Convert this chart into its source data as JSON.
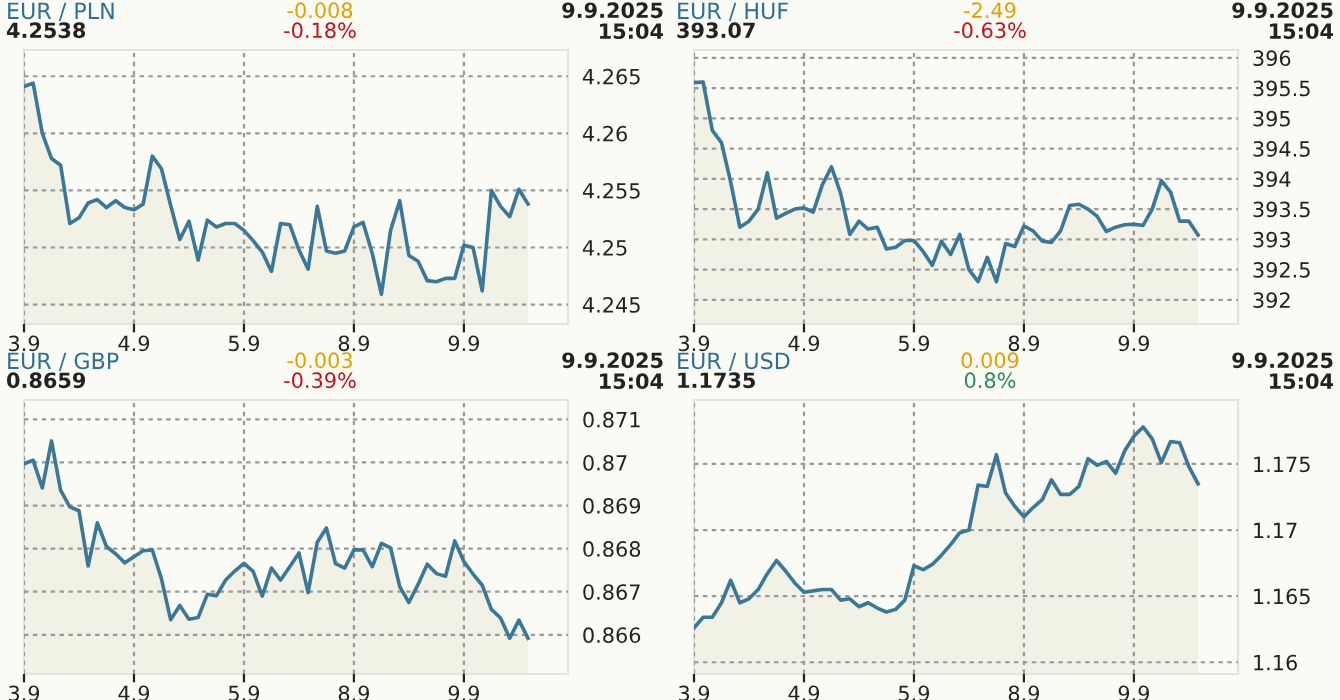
{
  "chart_data": [
    {
      "type": "area",
      "title": "EUR / PLN",
      "subtitle": "4.2538",
      "annotations": [
        "-0.008",
        "-0.18%",
        "9.9.2025\n15:04"
      ],
      "grid": true,
      "line_style": "solid",
      "color": "#3b7898",
      "categories": [
        "3.9",
        null,
        null,
        null,
        null,
        null,
        null,
        null,
        null,
        null,
        null,
        null,
        "4.9",
        null,
        null,
        null,
        null,
        null,
        null,
        null,
        null,
        null,
        null,
        null,
        "5.9",
        null,
        null,
        null,
        null,
        null,
        null,
        null,
        null,
        null,
        null,
        null,
        "8.9",
        null,
        null,
        null,
        null,
        null,
        null,
        null,
        null,
        null,
        null,
        null,
        "9.9",
        null,
        null,
        null,
        null,
        null,
        null,
        null
      ],
      "values": [
        4.2641,
        4.2644,
        4.26,
        4.2578,
        4.2572,
        4.2521,
        4.2526,
        4.2539,
        4.2542,
        4.2535,
        4.2541,
        4.2535,
        4.2533,
        4.2538,
        4.258,
        4.2569,
        4.2537,
        4.2507,
        4.2523,
        4.2489,
        4.2524,
        4.2518,
        4.2521,
        4.2521,
        4.2515,
        4.2506,
        4.2496,
        4.2479,
        4.2521,
        4.252,
        4.2498,
        4.2481,
        4.2536,
        4.2497,
        4.2495,
        4.2497,
        4.2518,
        4.2522,
        4.2495,
        4.2459,
        4.2515,
        4.2541,
        4.2493,
        4.2488,
        4.2471,
        4.247,
        4.2473,
        4.2473,
        4.2502,
        4.25,
        4.2462,
        4.255,
        4.2536,
        4.2527,
        4.2551,
        4.2538
      ],
      "ylim": [
        4.2433,
        4.2673
      ],
      "yticks": [
        4.245,
        4.25,
        4.255,
        4.26,
        4.265
      ]
    },
    {
      "type": "area",
      "title": "EUR / HUF",
      "subtitle": "393.07",
      "annotations": [
        "-2.49",
        "-0.63%",
        "9.9.2025\n15:04"
      ],
      "grid": true,
      "line_style": "solid",
      "color": "#3b7898",
      "categories": [
        "3.9",
        null,
        null,
        null,
        null,
        null,
        null,
        null,
        null,
        null,
        null,
        null,
        "4.9",
        null,
        null,
        null,
        null,
        null,
        null,
        null,
        null,
        null,
        null,
        null,
        "5.9",
        null,
        null,
        null,
        null,
        null,
        null,
        null,
        null,
        null,
        null,
        null,
        "8.9",
        null,
        null,
        null,
        null,
        null,
        null,
        null,
        null,
        null,
        null,
        null,
        "9.9",
        null,
        null,
        null,
        null,
        null,
        null,
        null
      ],
      "values": [
        395.59,
        395.6,
        394.8,
        394.6,
        393.95,
        393.2,
        393.3,
        393.5,
        394.1,
        393.35,
        393.43,
        393.5,
        393.52,
        393.45,
        393.9,
        394.2,
        393.76,
        393.08,
        393.3,
        393.17,
        393.2,
        392.84,
        392.87,
        392.98,
        392.98,
        392.8,
        392.57,
        392.97,
        392.75,
        393.08,
        392.5,
        392.3,
        392.7,
        392.3,
        392.93,
        392.88,
        393.22,
        393.14,
        392.97,
        392.95,
        393.14,
        393.56,
        393.58,
        393.5,
        393.38,
        393.13,
        393.2,
        393.24,
        393.25,
        393.23,
        393.5,
        393.97,
        393.78,
        393.3,
        393.3,
        393.07
      ],
      "ylim": [
        391.6,
        396.13
      ],
      "yticks": [
        392,
        392.5,
        393,
        393.5,
        394,
        394.5,
        395,
        395.5,
        396
      ]
    },
    {
      "type": "area",
      "title": "EUR / GBP",
      "subtitle": "0.8659",
      "annotations": [
        "-0.003",
        "-0.39%",
        "9.9.2025\n15:04"
      ],
      "grid": true,
      "line_style": "solid",
      "color": "#3b7898",
      "categories": [
        "3.9",
        null,
        null,
        null,
        null,
        null,
        null,
        null,
        null,
        null,
        null,
        null,
        "4.9",
        null,
        null,
        null,
        null,
        null,
        null,
        null,
        null,
        null,
        null,
        null,
        "5.9",
        null,
        null,
        null,
        null,
        null,
        null,
        null,
        null,
        null,
        null,
        null,
        "8.9",
        null,
        null,
        null,
        null,
        null,
        null,
        null,
        null,
        null,
        null,
        null,
        "9.9",
        null,
        null,
        null,
        null,
        null,
        null,
        null
      ],
      "values": [
        0.86997,
        0.87005,
        0.86941,
        0.8705,
        0.86935,
        0.86897,
        0.86888,
        0.8676,
        0.8686,
        0.86805,
        0.86788,
        0.86767,
        0.86781,
        0.86795,
        0.86797,
        0.8673,
        0.86635,
        0.86668,
        0.86636,
        0.8664,
        0.86694,
        0.86691,
        0.86727,
        0.86748,
        0.86766,
        0.86747,
        0.8669,
        0.86755,
        0.86727,
        0.86758,
        0.8679,
        0.86698,
        0.86815,
        0.86848,
        0.86765,
        0.86755,
        0.86797,
        0.86797,
        0.86758,
        0.86812,
        0.86802,
        0.86712,
        0.86675,
        0.86717,
        0.86764,
        0.86742,
        0.86736,
        0.86818,
        0.8677,
        0.86741,
        0.86715,
        0.86659,
        0.86639,
        0.86592,
        0.86634,
        0.86592
      ],
      "ylim": [
        0.86509,
        0.87145
      ],
      "yticks": [
        0.866,
        0.867,
        0.868,
        0.869,
        0.87,
        0.871
      ]
    },
    {
      "type": "area",
      "title": "EUR / USD",
      "subtitle": "1.1735",
      "annotations": [
        "0.009",
        "0.8%",
        "9.9.2025\n15:04"
      ],
      "grid": true,
      "line_style": "solid",
      "color": "#3b7898",
      "categories": [
        "3.9",
        null,
        null,
        null,
        null,
        null,
        null,
        null,
        null,
        null,
        null,
        null,
        "4.9",
        null,
        null,
        null,
        null,
        null,
        null,
        null,
        null,
        null,
        null,
        null,
        "5.9",
        null,
        null,
        null,
        null,
        null,
        null,
        null,
        null,
        null,
        null,
        null,
        "8.9",
        null,
        null,
        null,
        null,
        null,
        null,
        null,
        null,
        null,
        null,
        null,
        "9.9",
        null,
        null,
        null,
        null,
        null,
        null,
        null
      ],
      "values": [
        1.1626,
        1.1634,
        1.1634,
        1.1645,
        1.1662,
        1.1645,
        1.1648,
        1.1655,
        1.1667,
        1.1677,
        1.1669,
        1.166,
        1.1653,
        1.1654,
        1.1655,
        1.1655,
        1.1647,
        1.1648,
        1.1642,
        1.1645,
        1.1641,
        1.1638,
        1.164,
        1.1647,
        1.1673,
        1.167,
        1.1674,
        1.1681,
        1.1689,
        1.1698,
        1.17,
        1.1734,
        1.1733,
        1.1757,
        1.1728,
        1.1718,
        1.171,
        1.1717,
        1.1723,
        1.1738,
        1.1727,
        1.1727,
        1.1733,
        1.1754,
        1.1749,
        1.1752,
        1.1743,
        1.176,
        1.1771,
        1.1778,
        1.1769,
        1.1751,
        1.1767,
        1.1766,
        1.1748,
        1.1735
      ],
      "ylim": [
        1.15911,
        1.17984
      ],
      "yticks": [
        1.16,
        1.165,
        1.17,
        1.175
      ]
    }
  ]
}
